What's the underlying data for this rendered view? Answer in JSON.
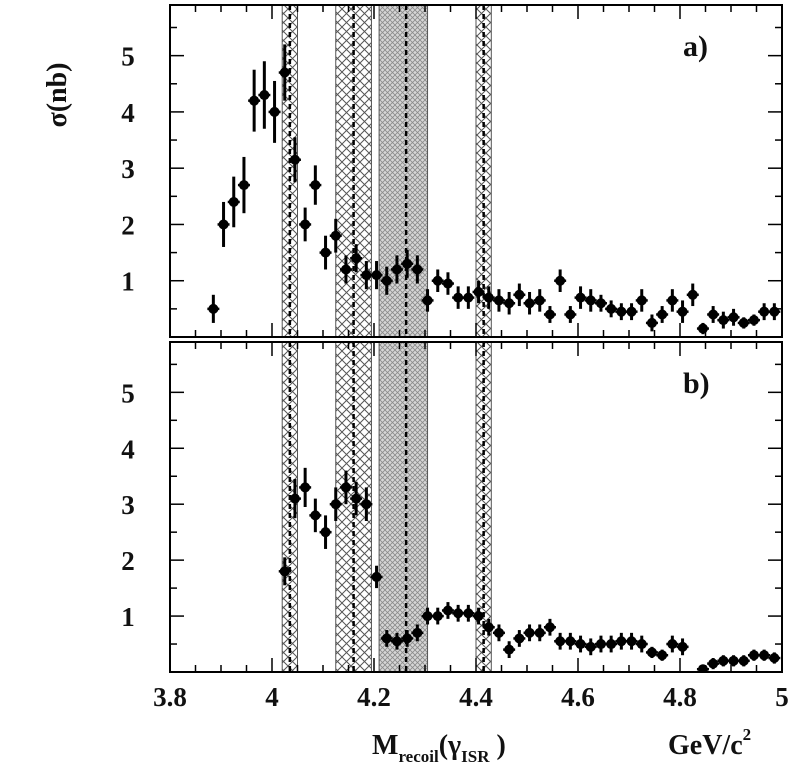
{
  "chart_data": [
    {
      "type": "scatter",
      "panel_label": "a)",
      "ylabel": "σ(nb)",
      "xlim": [
        3.8,
        5.0
      ],
      "ylim": [
        0,
        5.9
      ],
      "yticks": [
        "1",
        "2",
        "3",
        "4",
        "5"
      ],
      "grid": false,
      "series": [
        {
          "points": [
            {
              "x": 3.885,
              "y": 0.5,
              "err": 0.25
            },
            {
              "x": 3.905,
              "y": 2.0,
              "err": 0.4
            },
            {
              "x": 3.925,
              "y": 2.4,
              "err": 0.45
            },
            {
              "x": 3.945,
              "y": 2.7,
              "err": 0.5
            },
            {
              "x": 3.965,
              "y": 4.2,
              "err": 0.55
            },
            {
              "x": 3.985,
              "y": 4.3,
              "err": 0.6
            },
            {
              "x": 4.005,
              "y": 4.0,
              "err": 0.55
            },
            {
              "x": 4.025,
              "y": 4.7,
              "err": 0.5
            },
            {
              "x": 4.045,
              "y": 3.15,
              "err": 0.4
            },
            {
              "x": 4.065,
              "y": 2.0,
              "err": 0.3
            },
            {
              "x": 4.085,
              "y": 2.7,
              "err": 0.35
            },
            {
              "x": 4.105,
              "y": 1.5,
              "err": 0.3
            },
            {
              "x": 4.125,
              "y": 1.8,
              "err": 0.3
            },
            {
              "x": 4.145,
              "y": 1.2,
              "err": 0.25
            },
            {
              "x": 4.165,
              "y": 1.4,
              "err": 0.25
            },
            {
              "x": 4.185,
              "y": 1.1,
              "err": 0.25
            },
            {
              "x": 4.205,
              "y": 1.1,
              "err": 0.25
            },
            {
              "x": 4.225,
              "y": 1.0,
              "err": 0.25
            },
            {
              "x": 4.245,
              "y": 1.2,
              "err": 0.25
            },
            {
              "x": 4.265,
              "y": 1.3,
              "err": 0.25
            },
            {
              "x": 4.285,
              "y": 1.2,
              "err": 0.25
            },
            {
              "x": 4.305,
              "y": 0.65,
              "err": 0.2
            },
            {
              "x": 4.325,
              "y": 1.0,
              "err": 0.2
            },
            {
              "x": 4.345,
              "y": 0.95,
              "err": 0.2
            },
            {
              "x": 4.365,
              "y": 0.7,
              "err": 0.2
            },
            {
              "x": 4.385,
              "y": 0.7,
              "err": 0.2
            },
            {
              "x": 4.405,
              "y": 0.8,
              "err": 0.2
            },
            {
              "x": 4.425,
              "y": 0.7,
              "err": 0.2
            },
            {
              "x": 4.445,
              "y": 0.65,
              "err": 0.2
            },
            {
              "x": 4.465,
              "y": 0.6,
              "err": 0.2
            },
            {
              "x": 4.485,
              "y": 0.75,
              "err": 0.2
            },
            {
              "x": 4.505,
              "y": 0.6,
              "err": 0.2
            },
            {
              "x": 4.525,
              "y": 0.65,
              "err": 0.2
            },
            {
              "x": 4.545,
              "y": 0.4,
              "err": 0.15
            },
            {
              "x": 4.565,
              "y": 1.0,
              "err": 0.2
            },
            {
              "x": 4.585,
              "y": 0.4,
              "err": 0.15
            },
            {
              "x": 4.605,
              "y": 0.7,
              "err": 0.2
            },
            {
              "x": 4.625,
              "y": 0.65,
              "err": 0.2
            },
            {
              "x": 4.645,
              "y": 0.6,
              "err": 0.15
            },
            {
              "x": 4.665,
              "y": 0.5,
              "err": 0.15
            },
            {
              "x": 4.685,
              "y": 0.45,
              "err": 0.15
            },
            {
              "x": 4.705,
              "y": 0.45,
              "err": 0.15
            },
            {
              "x": 4.725,
              "y": 0.65,
              "err": 0.2
            },
            {
              "x": 4.745,
              "y": 0.25,
              "err": 0.15
            },
            {
              "x": 4.765,
              "y": 0.4,
              "err": 0.15
            },
            {
              "x": 4.785,
              "y": 0.65,
              "err": 0.2
            },
            {
              "x": 4.805,
              "y": 0.45,
              "err": 0.2
            },
            {
              "x": 4.825,
              "y": 0.75,
              "err": 0.2
            },
            {
              "x": 4.845,
              "y": 0.15,
              "err": 0.1
            },
            {
              "x": 4.865,
              "y": 0.4,
              "err": 0.15
            },
            {
              "x": 4.885,
              "y": 0.3,
              "err": 0.15
            },
            {
              "x": 4.905,
              "y": 0.35,
              "err": 0.15
            },
            {
              "x": 4.925,
              "y": 0.25,
              "err": 0.1
            },
            {
              "x": 4.945,
              "y": 0.3,
              "err": 0.1
            },
            {
              "x": 4.965,
              "y": 0.45,
              "err": 0.15
            },
            {
              "x": 4.985,
              "y": 0.45,
              "err": 0.15
            }
          ]
        }
      ]
    },
    {
      "type": "scatter",
      "panel_label": "b)",
      "xlabel_main": "M",
      "xlabel_sub1": "recoil",
      "xlabel_mid": "(γ",
      "xlabel_sub2": "ISR",
      "xlabel_end": " )",
      "xunit": "GeV/c",
      "xunit_sup": "2",
      "xlim": [
        3.8,
        5.0
      ],
      "ylim": [
        0,
        5.9
      ],
      "xticks": [
        "3.8",
        "4",
        "4.2",
        "4.4",
        "4.6",
        "4.8",
        "5"
      ],
      "yticks": [
        "1",
        "2",
        "3",
        "4",
        "5"
      ],
      "grid": false,
      "series": [
        {
          "points": [
            {
              "x": 4.025,
              "y": 1.8,
              "err": 0.25
            },
            {
              "x": 4.045,
              "y": 3.1,
              "err": 0.35
            },
            {
              "x": 4.065,
              "y": 3.3,
              "err": 0.35
            },
            {
              "x": 4.085,
              "y": 2.8,
              "err": 0.3
            },
            {
              "x": 4.105,
              "y": 2.5,
              "err": 0.3
            },
            {
              "x": 4.125,
              "y": 3.0,
              "err": 0.3
            },
            {
              "x": 4.145,
              "y": 3.3,
              "err": 0.3
            },
            {
              "x": 4.165,
              "y": 3.1,
              "err": 0.3
            },
            {
              "x": 4.185,
              "y": 3.0,
              "err": 0.3
            },
            {
              "x": 4.205,
              "y": 1.7,
              "err": 0.2
            },
            {
              "x": 4.225,
              "y": 0.6,
              "err": 0.15
            },
            {
              "x": 4.245,
              "y": 0.55,
              "err": 0.15
            },
            {
              "x": 4.265,
              "y": 0.6,
              "err": 0.15
            },
            {
              "x": 4.285,
              "y": 0.7,
              "err": 0.15
            },
            {
              "x": 4.305,
              "y": 1.0,
              "err": 0.15
            },
            {
              "x": 4.325,
              "y": 1.0,
              "err": 0.15
            },
            {
              "x": 4.345,
              "y": 1.1,
              "err": 0.15
            },
            {
              "x": 4.365,
              "y": 1.05,
              "err": 0.15
            },
            {
              "x": 4.385,
              "y": 1.05,
              "err": 0.15
            },
            {
              "x": 4.405,
              "y": 1.0,
              "err": 0.15
            },
            {
              "x": 4.425,
              "y": 0.8,
              "err": 0.15
            },
            {
              "x": 4.445,
              "y": 0.7,
              "err": 0.15
            },
            {
              "x": 4.465,
              "y": 0.4,
              "err": 0.15
            },
            {
              "x": 4.485,
              "y": 0.6,
              "err": 0.15
            },
            {
              "x": 4.505,
              "y": 0.7,
              "err": 0.15
            },
            {
              "x": 4.525,
              "y": 0.7,
              "err": 0.15
            },
            {
              "x": 4.545,
              "y": 0.8,
              "err": 0.15
            },
            {
              "x": 4.565,
              "y": 0.55,
              "err": 0.15
            },
            {
              "x": 4.585,
              "y": 0.55,
              "err": 0.15
            },
            {
              "x": 4.605,
              "y": 0.5,
              "err": 0.15
            },
            {
              "x": 4.625,
              "y": 0.45,
              "err": 0.15
            },
            {
              "x": 4.645,
              "y": 0.5,
              "err": 0.15
            },
            {
              "x": 4.665,
              "y": 0.5,
              "err": 0.15
            },
            {
              "x": 4.685,
              "y": 0.55,
              "err": 0.15
            },
            {
              "x": 4.705,
              "y": 0.55,
              "err": 0.15
            },
            {
              "x": 4.725,
              "y": 0.5,
              "err": 0.15
            },
            {
              "x": 4.745,
              "y": 0.35,
              "err": 0.1
            },
            {
              "x": 4.765,
              "y": 0.3,
              "err": 0.1
            },
            {
              "x": 4.785,
              "y": 0.5,
              "err": 0.15
            },
            {
              "x": 4.805,
              "y": 0.45,
              "err": 0.15
            },
            {
              "x": 4.845,
              "y": 0.05,
              "err": 0.05
            },
            {
              "x": 4.865,
              "y": 0.15,
              "err": 0.1
            },
            {
              "x": 4.885,
              "y": 0.2,
              "err": 0.1
            },
            {
              "x": 4.905,
              "y": 0.2,
              "err": 0.1
            },
            {
              "x": 4.925,
              "y": 0.2,
              "err": 0.1
            },
            {
              "x": 4.945,
              "y": 0.3,
              "err": 0.1
            },
            {
              "x": 4.965,
              "y": 0.3,
              "err": 0.1
            },
            {
              "x": 4.985,
              "y": 0.25,
              "err": 0.1
            }
          ]
        }
      ]
    }
  ],
  "bands": [
    {
      "lo": 4.02,
      "hi": 4.05,
      "center": 4.035,
      "fill": "cross"
    },
    {
      "lo": 4.125,
      "hi": 4.195,
      "center": 4.16,
      "fill": "cross"
    },
    {
      "lo": 4.21,
      "hi": 4.305,
      "center": 4.263,
      "fill": "dense"
    },
    {
      "lo": 4.4,
      "hi": 4.43,
      "center": 4.415,
      "fill": "cross"
    }
  ],
  "colors": {
    "marker": "#000000",
    "band_line": "#555555",
    "hatch": "#333333",
    "frame": "#000000"
  }
}
